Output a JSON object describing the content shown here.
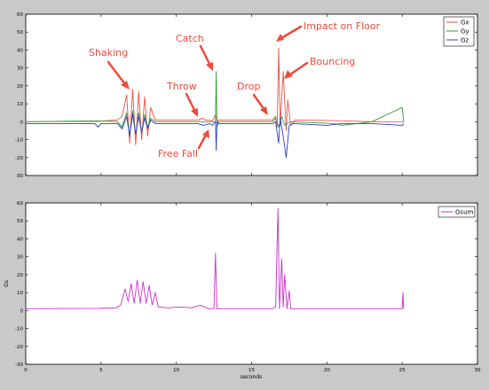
{
  "figure": {
    "background": "#c9c9c9"
  },
  "chart_data": [
    {
      "type": "line",
      "title": "",
      "xlabel": "",
      "ylabel": "",
      "xlim": [
        0,
        30
      ],
      "ylim": [
        -30,
        60
      ],
      "xticks": [
        0,
        5,
        10,
        15,
        20,
        25,
        30
      ],
      "yticks": [
        -30,
        -20,
        -10,
        0,
        10,
        20,
        30,
        40,
        50,
        60
      ],
      "show_xtick_labels": false,
      "grid": false,
      "legend": {
        "placement": "top-right"
      },
      "series": [
        {
          "name": "Gx",
          "color": "#e8524a",
          "x": [
            0,
            4.8,
            6.1,
            6.4,
            6.7,
            6.9,
            7.1,
            7.3,
            7.5,
            7.7,
            7.9,
            8.1,
            8.3,
            8.6,
            11.5,
            11.7,
            11.9,
            12.1,
            12.4,
            12.6,
            12.7,
            12.8,
            16.4,
            16.6,
            16.7,
            16.8,
            16.9,
            17.1,
            17.3,
            17.4,
            17.6,
            17.9,
            21,
            23,
            25,
            25.1
          ],
          "y": [
            0,
            0.2,
            1,
            3,
            15,
            -12,
            18,
            -13,
            17,
            -10,
            14,
            -8,
            8,
            1,
            1,
            2,
            1,
            1,
            0.5,
            4,
            0,
            1,
            1,
            3,
            -3,
            41,
            -2,
            28,
            -5,
            12,
            -2,
            1,
            0.5,
            0,
            0,
            0
          ]
        },
        {
          "name": "Gy",
          "color": "#3a9a3a",
          "x": [
            0,
            4.8,
            6.1,
            6.4,
            6.7,
            6.9,
            7.1,
            7.3,
            7.5,
            7.7,
            7.9,
            8.1,
            8.3,
            8.6,
            11.5,
            12.4,
            12.6,
            12.65,
            12.7,
            12.8,
            16.4,
            16.6,
            16.8,
            17.0,
            17.2,
            17.6,
            20.5,
            21,
            23,
            25,
            25.1
          ],
          "y": [
            0,
            0.5,
            0,
            -3,
            5,
            -8,
            6,
            -7,
            5,
            -6,
            4,
            -3,
            2,
            0,
            0,
            0,
            0,
            28,
            -3,
            0,
            0,
            2,
            -3,
            3,
            -2,
            0,
            -1,
            -2,
            0,
            8,
            0
          ]
        },
        {
          "name": "Gz",
          "color": "#2d3fbf",
          "x": [
            0,
            4.6,
            4.8,
            5.0,
            6.1,
            6.4,
            6.7,
            6.9,
            7.1,
            7.3,
            7.5,
            7.7,
            7.9,
            8.1,
            8.3,
            8.6,
            11.4,
            11.8,
            12.2,
            12.4,
            12.6,
            12.65,
            12.7,
            12.8,
            16.4,
            16.6,
            16.8,
            16.9,
            17.1,
            17.3,
            17.5,
            17.8,
            20,
            21,
            23,
            25,
            25.1
          ],
          "y": [
            -1,
            -1,
            -3,
            -1,
            -1,
            -4,
            3,
            -8,
            4,
            -7,
            3,
            -6,
            2,
            -4,
            1,
            -1,
            -1,
            -2,
            -1,
            -2,
            0,
            -16,
            0,
            -1,
            -1,
            0,
            -12,
            2,
            -8,
            -20,
            -2,
            -1,
            -2,
            -1,
            -1,
            -2,
            -1
          ]
        }
      ],
      "annotations": [
        {
          "text": "Shaking",
          "color": "#f04a3a"
        },
        {
          "text": "Catch",
          "color": "#f04a3a"
        },
        {
          "text": "Impact on Floor",
          "color": "#f04a3a"
        },
        {
          "text": "Bouncing",
          "color": "#f04a3a"
        },
        {
          "text": "Throw",
          "color": "#f04a3a"
        },
        {
          "text": "Drop",
          "color": "#f04a3a"
        },
        {
          "text": "Free Fall",
          "color": "#f04a3a"
        }
      ]
    },
    {
      "type": "line",
      "title": "",
      "xlabel": "seconds",
      "ylabel": "Gs",
      "xlim": [
        0,
        30
      ],
      "ylim": [
        -30,
        60
      ],
      "xticks": [
        0,
        5,
        10,
        15,
        20,
        25,
        30
      ],
      "yticks": [
        -30,
        -20,
        -10,
        0,
        10,
        20,
        30,
        40,
        50,
        60
      ],
      "show_xtick_labels": true,
      "grid": false,
      "legend": {
        "placement": "top-right"
      },
      "series": [
        {
          "name": "Gsum",
          "color": "#cc2fcc",
          "x": [
            0,
            4.8,
            6.0,
            6.3,
            6.6,
            6.8,
            7.0,
            7.2,
            7.4,
            7.6,
            7.8,
            8.0,
            8.2,
            8.4,
            8.6,
            8.8,
            9.5,
            10.2,
            11.0,
            11.6,
            11.9,
            12.1,
            12.5,
            12.6,
            12.7,
            12.8,
            16.4,
            16.6,
            16.75,
            16.85,
            17.0,
            17.1,
            17.2,
            17.35,
            17.5,
            17.6,
            17.9,
            20,
            23,
            25,
            25.05,
            25.1
          ],
          "y": [
            1,
            1.2,
            1.5,
            3,
            12,
            5,
            15,
            4,
            17,
            4,
            16,
            4,
            14,
            3,
            10,
            2,
            1.5,
            2,
            1.5,
            3,
            2,
            1,
            1,
            32,
            1,
            1,
            1,
            2,
            57,
            1,
            29,
            2,
            20,
            1,
            11,
            1,
            1,
            1,
            1,
            1,
            10,
            1
          ]
        }
      ]
    }
  ]
}
